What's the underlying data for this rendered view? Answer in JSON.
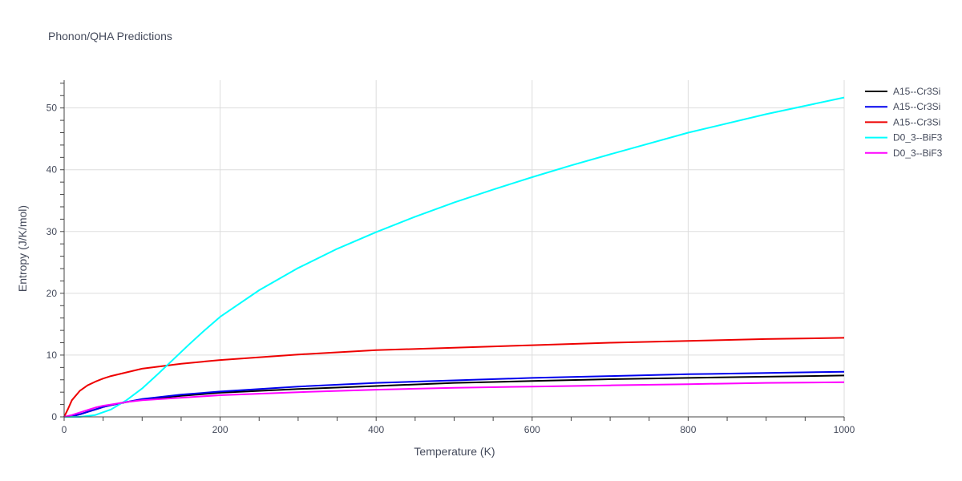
{
  "chart_data": {
    "type": "line",
    "title": "Phonon/QHA Predictions",
    "xlabel": "Temperature (K)",
    "ylabel": "Entropy (J/K/mol)",
    "xlim": [
      0,
      1000
    ],
    "ylim": [
      0,
      54.5
    ],
    "x_ticks": [
      0,
      200,
      400,
      600,
      800,
      1000
    ],
    "y_ticks": [
      0,
      10,
      20,
      30,
      40,
      50
    ],
    "grid": true,
    "legend_position": "right",
    "series": [
      {
        "name": "A15--Cr3Si",
        "color": "#000000",
        "x": [
          0,
          10,
          20,
          30,
          40,
          50,
          60,
          80,
          100,
          150,
          200,
          300,
          400,
          500,
          600,
          700,
          800,
          900,
          1000
        ],
        "y": [
          0,
          0.1,
          0.4,
          0.8,
          1.2,
          1.6,
          1.9,
          2.4,
          2.8,
          3.4,
          3.9,
          4.5,
          5.0,
          5.5,
          5.8,
          6.1,
          6.3,
          6.5,
          6.7
        ]
      },
      {
        "name": "A15--Cr3Si",
        "color": "#0000ee",
        "x": [
          0,
          10,
          20,
          30,
          40,
          50,
          60,
          80,
          100,
          150,
          200,
          300,
          400,
          500,
          600,
          700,
          800,
          900,
          1000
        ],
        "y": [
          0,
          0.1,
          0.4,
          0.8,
          1.2,
          1.6,
          1.9,
          2.4,
          2.9,
          3.6,
          4.1,
          4.9,
          5.5,
          5.9,
          6.3,
          6.6,
          6.9,
          7.1,
          7.3
        ]
      },
      {
        "name": "A15--Cr3Si",
        "color": "#ee0000",
        "x": [
          0,
          5,
          10,
          20,
          30,
          40,
          50,
          60,
          80,
          100,
          150,
          200,
          300,
          400,
          500,
          600,
          700,
          800,
          900,
          1000
        ],
        "y": [
          0,
          1.3,
          2.7,
          4.2,
          5.1,
          5.7,
          6.2,
          6.6,
          7.2,
          7.8,
          8.6,
          9.2,
          10.1,
          10.8,
          11.2,
          11.6,
          12.0,
          12.3,
          12.6,
          12.8
        ]
      },
      {
        "name": "D0_3--BiF3",
        "color": "#00ffff",
        "x": [
          0,
          20,
          40,
          60,
          80,
          100,
          120,
          140,
          160,
          180,
          200,
          250,
          300,
          350,
          400,
          450,
          500,
          550,
          600,
          650,
          700,
          800,
          900,
          1000
        ],
        "y": [
          0,
          0,
          0.3,
          1.2,
          2.7,
          4.6,
          6.9,
          9.3,
          11.7,
          14.0,
          16.2,
          20.5,
          24.1,
          27.2,
          29.9,
          32.4,
          34.7,
          36.8,
          38.8,
          40.7,
          42.5,
          46.0,
          49.0,
          51.7
        ]
      },
      {
        "name": "D0_3--BiF3",
        "color": "#ff00ff",
        "x": [
          0,
          10,
          20,
          30,
          40,
          50,
          60,
          80,
          100,
          150,
          200,
          300,
          400,
          500,
          600,
          700,
          800,
          900,
          1000
        ],
        "y": [
          0,
          0.3,
          0.7,
          1.1,
          1.5,
          1.8,
          2.0,
          2.4,
          2.7,
          3.1,
          3.5,
          4.0,
          4.4,
          4.7,
          4.9,
          5.1,
          5.3,
          5.5,
          5.6
        ]
      }
    ]
  }
}
